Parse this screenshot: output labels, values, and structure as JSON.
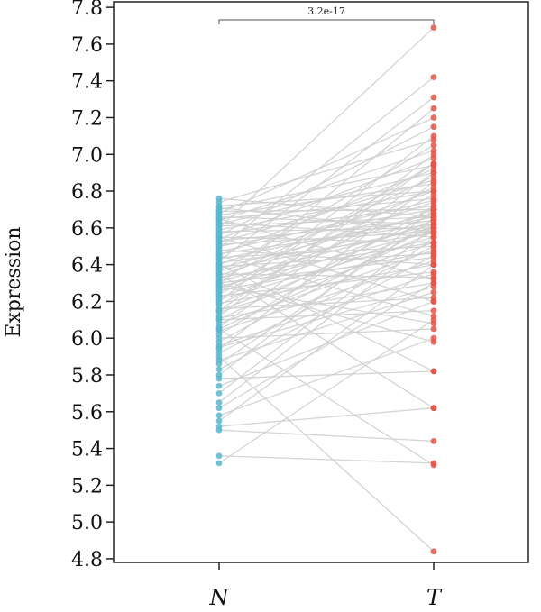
{
  "chart_data": {
    "type": "scatter",
    "subtype": "paired-points",
    "categories": [
      "N",
      "T"
    ],
    "ylabel": "Expression",
    "ylim": [
      4.78,
      7.83
    ],
    "yticks": [
      4.8,
      5.0,
      5.2,
      5.4,
      5.6,
      5.8,
      6.0,
      6.2,
      6.4,
      6.6,
      6.8,
      7.0,
      7.2,
      7.4,
      7.6,
      7.8
    ],
    "ytick_labels": [
      "4.8",
      "5.0",
      "5.2",
      "5.4",
      "5.6",
      "5.8",
      "6.0",
      "6.2",
      "6.4",
      "6.6",
      "6.8",
      "7.0",
      "7.2",
      "7.4",
      "7.6",
      "7.8"
    ],
    "grid": false,
    "significance": {
      "label": "3.2e-17",
      "between": [
        "N",
        "T"
      ]
    },
    "colors": {
      "N": "#5BB6CF",
      "T": "#E0574B",
      "line": "#D0D0D0"
    },
    "pairs": [
      [
        5.32,
        6.1
      ],
      [
        5.36,
        5.32
      ],
      [
        5.5,
        5.44
      ],
      [
        5.52,
        5.62
      ],
      [
        5.55,
        6.4
      ],
      [
        5.58,
        6.0
      ],
      [
        5.62,
        6.3
      ],
      [
        5.65,
        6.55
      ],
      [
        5.7,
        6.6
      ],
      [
        5.74,
        6.2
      ],
      [
        5.78,
        5.82
      ],
      [
        5.8,
        6.7
      ],
      [
        5.83,
        6.45
      ],
      [
        5.86,
        6.65
      ],
      [
        5.88,
        6.25
      ],
      [
        5.9,
        4.84
      ],
      [
        5.92,
        6.5
      ],
      [
        5.94,
        6.85
      ],
      [
        5.96,
        6.35
      ],
      [
        5.98,
        6.62
      ],
      [
        6.0,
        6.05
      ],
      [
        6.02,
        6.72
      ],
      [
        6.04,
        6.42
      ],
      [
        6.05,
        6.58
      ],
      [
        6.06,
        6.9
      ],
      [
        6.08,
        6.48
      ],
      [
        6.1,
        6.68
      ],
      [
        6.11,
        6.3
      ],
      [
        6.12,
        7.0
      ],
      [
        6.14,
        6.52
      ],
      [
        6.15,
        6.6
      ],
      [
        6.16,
        6.22
      ],
      [
        6.18,
        6.78
      ],
      [
        6.19,
        6.4
      ],
      [
        6.2,
        7.1
      ],
      [
        6.21,
        6.55
      ],
      [
        6.22,
        6.64
      ],
      [
        6.23,
        6.36
      ],
      [
        6.24,
        6.82
      ],
      [
        6.25,
        6.95
      ],
      [
        6.26,
        6.47
      ],
      [
        6.27,
        6.7
      ],
      [
        6.28,
        6.58
      ],
      [
        6.29,
        7.25
      ],
      [
        6.3,
        6.44
      ],
      [
        6.31,
        6.62
      ],
      [
        6.32,
        6.88
      ],
      [
        6.33,
        6.52
      ],
      [
        6.34,
        6.74
      ],
      [
        6.35,
        6.33
      ],
      [
        6.36,
        7.05
      ],
      [
        6.37,
        6.6
      ],
      [
        6.38,
        6.68
      ],
      [
        6.39,
        6.46
      ],
      [
        6.4,
        6.8
      ],
      [
        6.41,
        6.57
      ],
      [
        6.42,
        7.31
      ],
      [
        6.43,
        6.66
      ],
      [
        6.44,
        6.5
      ],
      [
        6.45,
        6.92
      ],
      [
        6.46,
        6.62
      ],
      [
        6.47,
        6.75
      ],
      [
        6.48,
        6.4
      ],
      [
        6.49,
        7.42
      ],
      [
        6.5,
        6.7
      ],
      [
        6.51,
        6.58
      ],
      [
        6.52,
        6.86
      ],
      [
        6.53,
        6.64
      ],
      [
        6.54,
        6.98
      ],
      [
        6.55,
        6.52
      ],
      [
        6.56,
        7.15
      ],
      [
        6.57,
        6.72
      ],
      [
        6.58,
        6.6
      ],
      [
        6.59,
        6.8
      ],
      [
        6.6,
        7.69
      ],
      [
        6.61,
        6.66
      ],
      [
        6.62,
        6.9
      ],
      [
        6.63,
        6.55
      ],
      [
        6.64,
        7.02
      ],
      [
        6.65,
        6.76
      ],
      [
        6.66,
        6.62
      ],
      [
        6.67,
        6.84
      ],
      [
        6.68,
        7.2
      ],
      [
        6.69,
        6.7
      ],
      [
        6.7,
        6.94
      ],
      [
        6.71,
        6.58
      ],
      [
        6.72,
        6.8
      ],
      [
        6.74,
        7.08
      ],
      [
        6.76,
        6.66
      ],
      [
        6.3,
        5.98
      ],
      [
        6.35,
        5.62
      ],
      [
        6.1,
        6.15
      ],
      [
        5.95,
        6.28
      ],
      [
        6.45,
        6.12
      ],
      [
        6.55,
        6.2
      ],
      [
        6.65,
        6.32
      ],
      [
        6.05,
        5.31
      ],
      [
        6.28,
        6.08
      ],
      [
        6.4,
        5.82
      ],
      [
        6.15,
        6.95
      ]
    ]
  }
}
